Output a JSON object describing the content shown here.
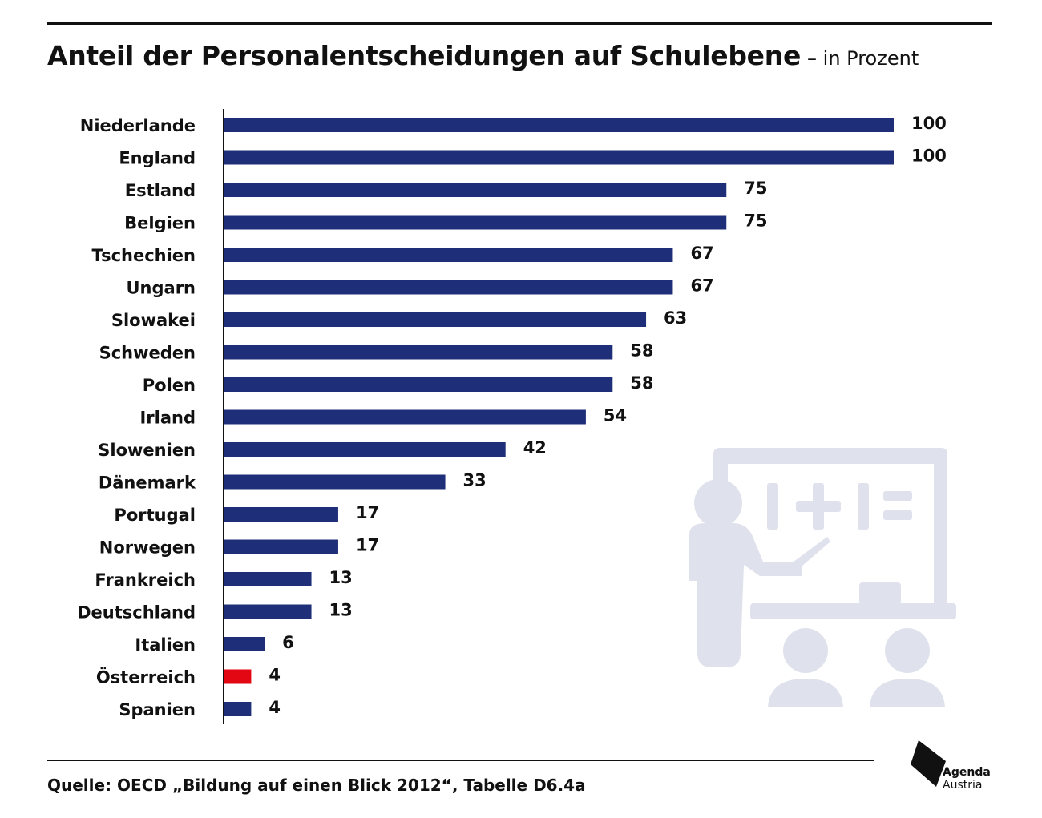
{
  "title": {
    "main": "Anteil der Personalentscheidungen auf Schulebene",
    "sub": "– in Prozent"
  },
  "chart_data": {
    "type": "bar",
    "orientation": "horizontal",
    "categories": [
      "Niederlande",
      "England",
      "Estland",
      "Belgien",
      "Tschechien",
      "Ungarn",
      "Slowakei",
      "Schweden",
      "Polen",
      "Irland",
      "Slowenien",
      "Dänemark",
      "Portugal",
      "Norwegen",
      "Frankreich",
      "Deutschland",
      "Italien",
      "Österreich",
      "Spanien"
    ],
    "values": [
      100,
      100,
      75,
      75,
      67,
      67,
      63,
      58,
      58,
      54,
      42,
      33,
      17,
      17,
      13,
      13,
      6,
      4,
      4
    ],
    "highlight": "Österreich",
    "xlim": [
      0,
      100
    ],
    "grid": false,
    "title": "Anteil der Personalentscheidungen auf Schulebene",
    "unit": "in Prozent"
  },
  "colors": {
    "bar": "#1e2e78",
    "highlight": "#e30613",
    "illustration": "#dfe2ec",
    "text": "#111111"
  },
  "illustration": {
    "icon": "teacher-at-board-icon",
    "board_text": "I+I="
  },
  "source": "Quelle: OECD „Bildung auf einen Blick 2012“, Tabelle D6.4a",
  "logo": {
    "line1": "Agenda",
    "line2": "Austria"
  }
}
